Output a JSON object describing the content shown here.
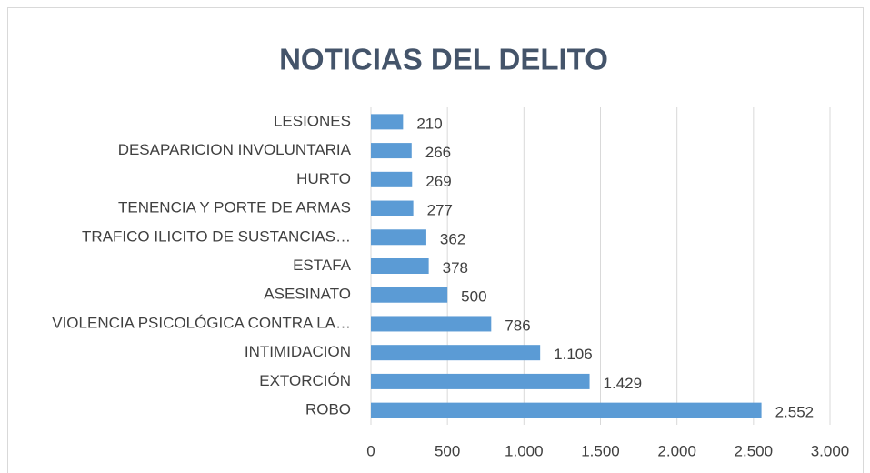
{
  "chart_data": {
    "type": "bar",
    "orientation": "horizontal",
    "title": "NOTICIAS DEL DELITO",
    "categories": [
      "LESIONES",
      "DESAPARICION INVOLUNTARIA",
      "HURTO",
      "TENENCIA Y PORTE DE ARMAS",
      "TRAFICO ILICITO DE SUSTANCIAS…",
      "ESTAFA",
      "ASESINATO",
      "VIOLENCIA PSICOLÓGICA CONTRA LA…",
      "INTIMIDACION",
      "EXTORCIÓN",
      "ROBO"
    ],
    "values": [
      210,
      266,
      269,
      277,
      362,
      378,
      500,
      786,
      1106,
      1429,
      2552
    ],
    "value_labels": [
      "210",
      "266",
      "269",
      "277",
      "362",
      "378",
      "500",
      "786",
      "1.106",
      "1.429",
      "2.552"
    ],
    "color": "#5b9bd5",
    "xlim": [
      0,
      3000
    ],
    "xticks": [
      0,
      500,
      {
        "value": 1000,
        "label": "1.000"
      },
      {
        "value": 1500,
        "label": "1.500"
      },
      {
        "value": 2000,
        "label": "2.000"
      },
      {
        "value": 2500,
        "label": "2.500"
      },
      {
        "value": 3000,
        "label": "3.000"
      }
    ],
    "grid": true
  }
}
